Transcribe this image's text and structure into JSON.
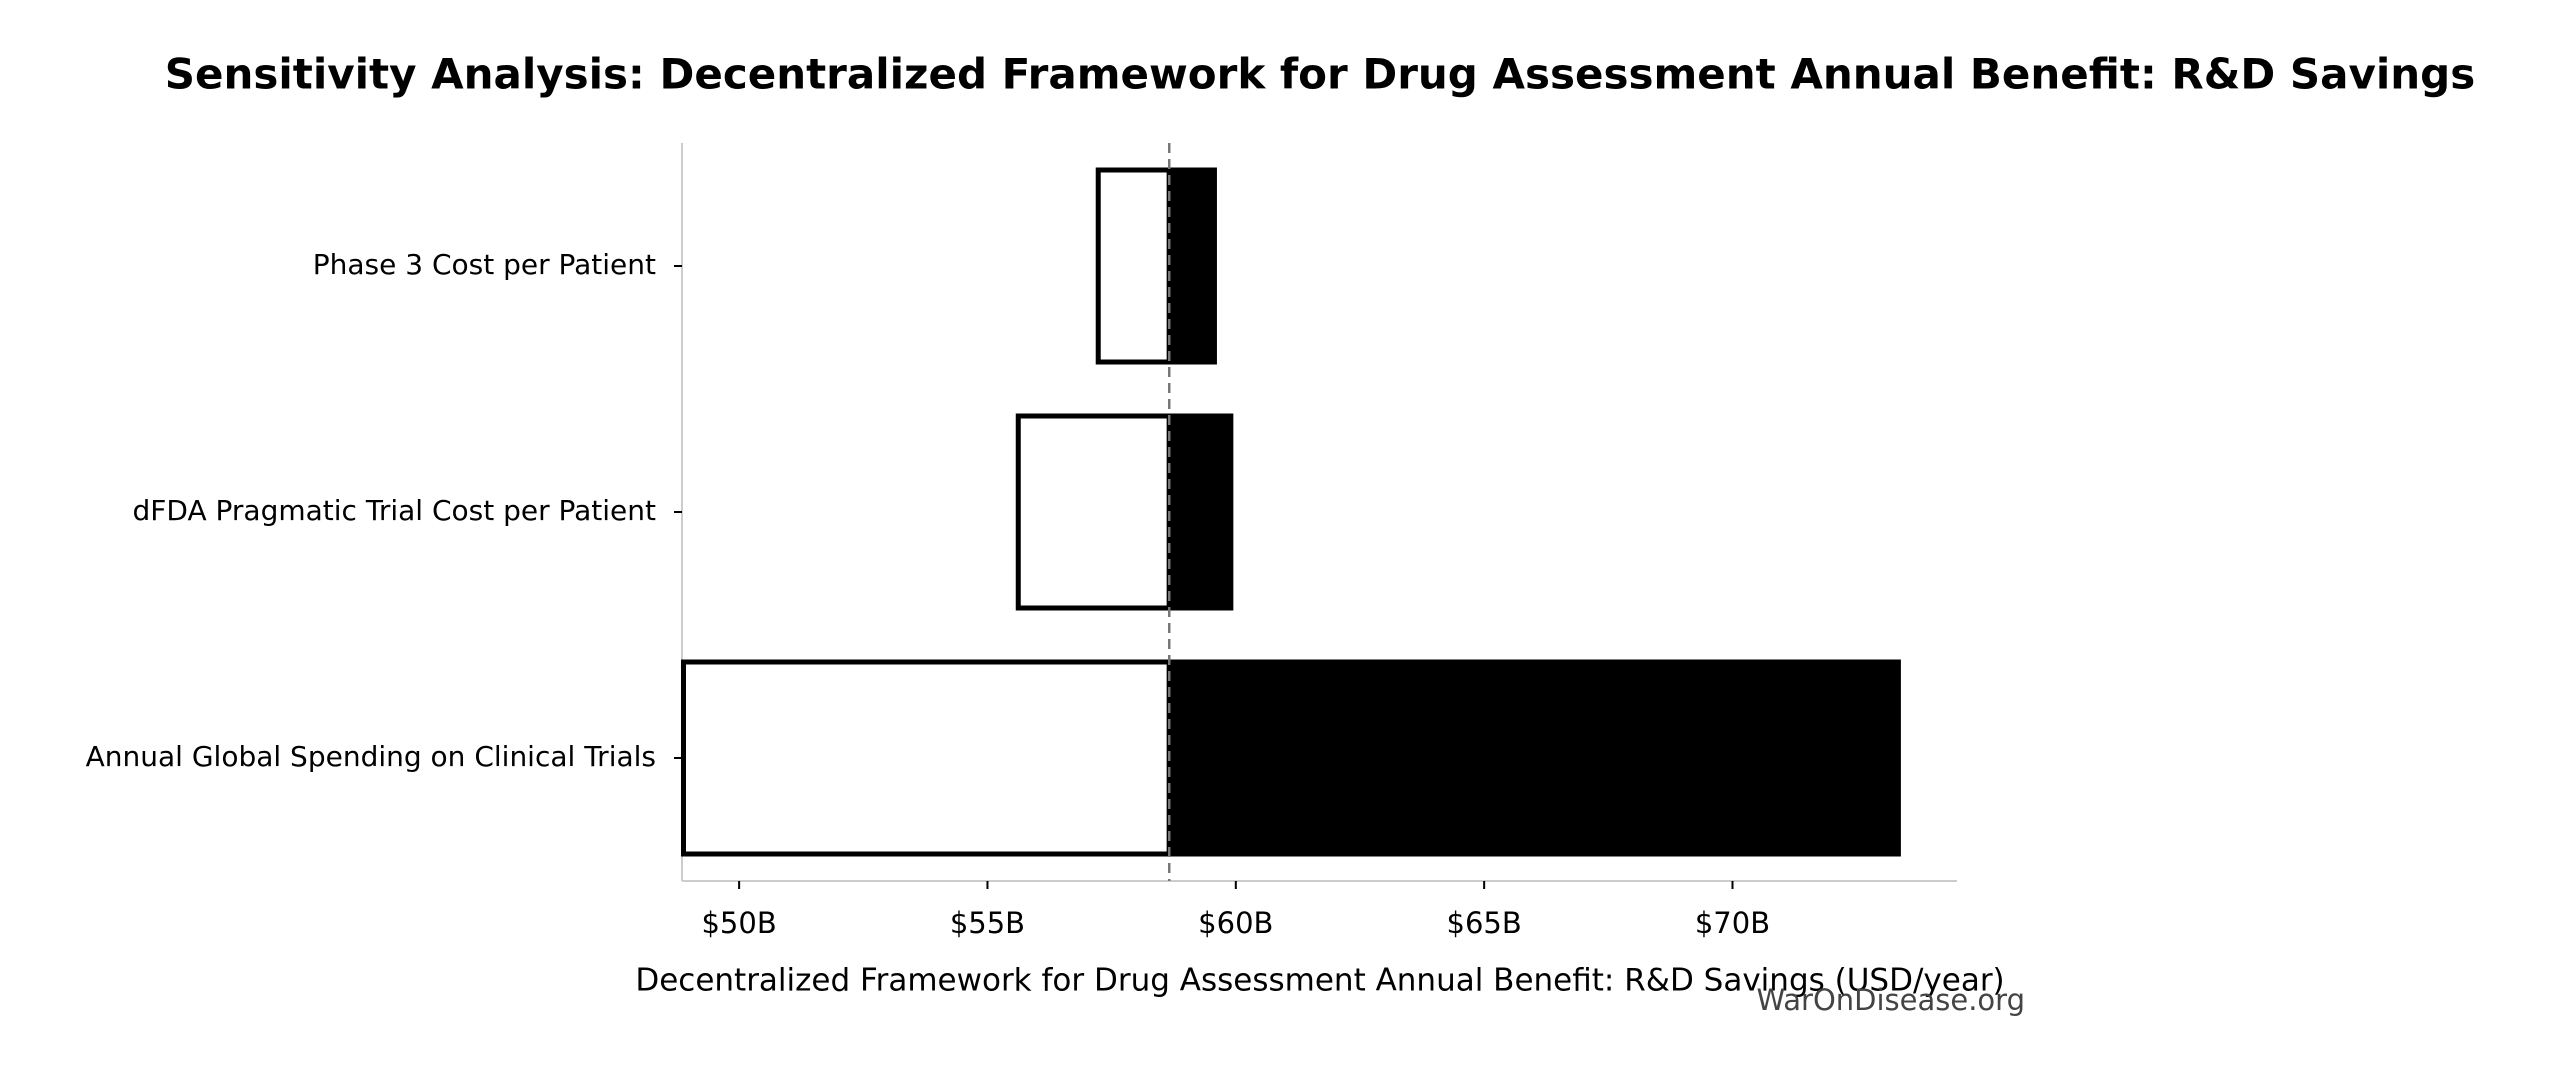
{
  "chart_data": {
    "type": "tornado",
    "title": "Sensitivity Analysis: Decentralized Framework for Drug Assessment Annual Benefit: R&D Savings",
    "xlabel": "Decentralized Framework for Drug Assessment Annual Benefit: R&D Savings (USD/year)",
    "watermark": "WarOnDisease.org",
    "categories": [
      "Phase 3 Cost per Patient",
      "dFDA Pragmatic Trial Cost per Patient",
      "Annual Global Spending on Clinical Trials"
    ],
    "baseline": 58660000000,
    "series": [
      {
        "color": "#ffffff",
        "values": [
          57230000000,
          55620000000,
          48880000000
        ]
      },
      {
        "color": "#000000",
        "values": [
          59570000000,
          59900000000,
          73340000000
        ]
      }
    ],
    "xlim": [
      48850000000,
      74520000000
    ],
    "xticks": [
      {
        "value": 50000000000,
        "label": "$50B"
      },
      {
        "value": 55000000000,
        "label": "$55B"
      },
      {
        "value": 60000000000,
        "label": "$60B"
      },
      {
        "value": 65000000000,
        "label": "$65B"
      },
      {
        "value": 70000000000,
        "label": "$70B"
      }
    ]
  }
}
